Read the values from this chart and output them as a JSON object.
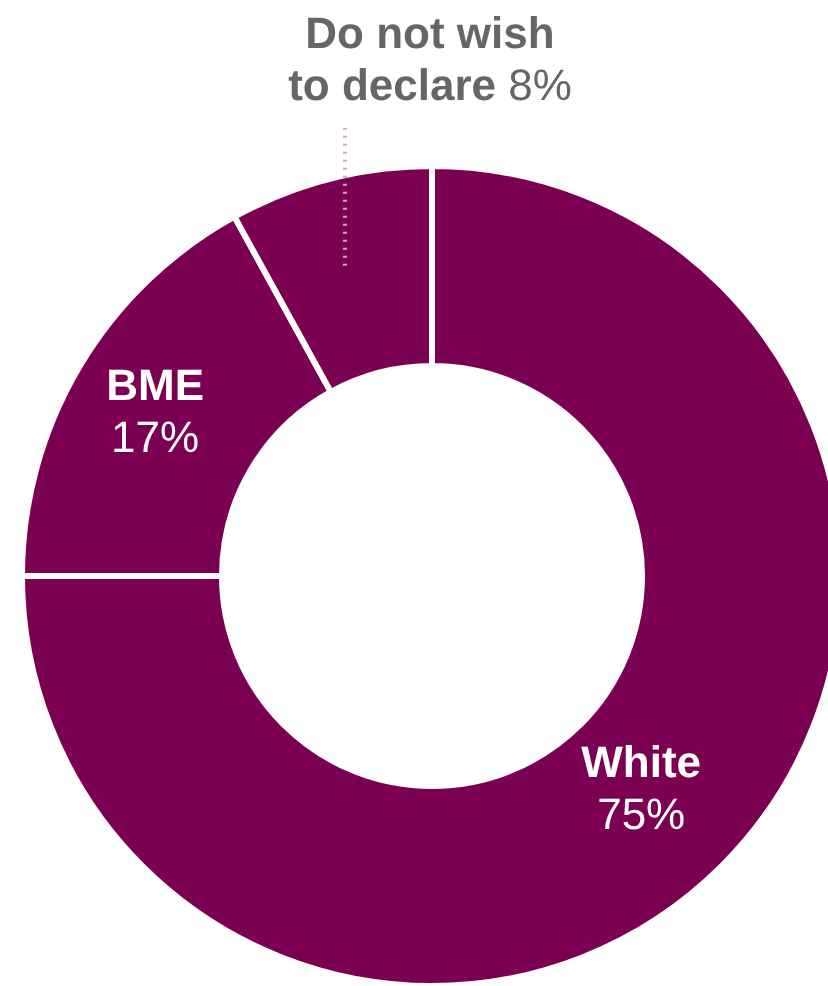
{
  "chart_data": {
    "type": "donut",
    "categories": [
      "White",
      "BME",
      "Do not wish to declare"
    ],
    "values": [
      75,
      17,
      8
    ],
    "value_labels": [
      "75%",
      "17%",
      "8%"
    ],
    "colors": [
      "#7b0051",
      "#7b0051",
      "#7b0051"
    ]
  }
}
